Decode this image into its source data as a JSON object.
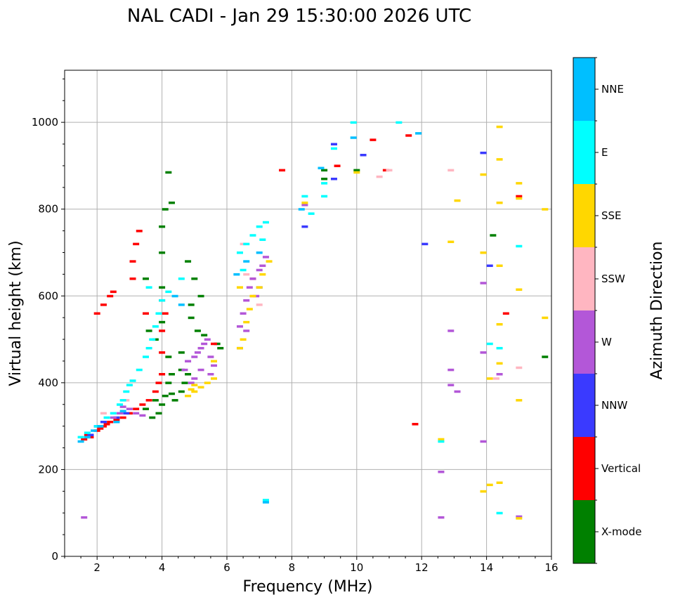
{
  "chart_data": {
    "type": "scatter",
    "title": "NAL CADI - Jan 29 15:30:00 2026 UTC",
    "xlabel": "Frequency (MHz)",
    "ylabel": "Virtual height (km)",
    "xlim": [
      1,
      16
    ],
    "ylim": [
      0,
      1120
    ],
    "xticks": [
      2,
      4,
      6,
      8,
      10,
      12,
      14,
      16
    ],
    "yticks": [
      0,
      200,
      400,
      600,
      800,
      1000
    ],
    "grid": true,
    "colorbar": {
      "label": "Azimuth Direction",
      "categories": [
        "X-mode",
        "Vertical",
        "NNW",
        "W",
        "SSW",
        "SSE",
        "E",
        "NNE"
      ],
      "colors": [
        "#008000",
        "#ff0000",
        "#3a3aff",
        "#b357d8",
        "#ffb6c1",
        "#ffd700",
        "#00ffff",
        "#00bfff"
      ]
    },
    "series": [
      {
        "name": "X-mode",
        "points": [
          [
            4.2,
            885
          ],
          [
            4.3,
            815
          ],
          [
            4.1,
            800
          ],
          [
            4.0,
            760
          ],
          [
            4.0,
            700
          ],
          [
            3.5,
            640
          ],
          [
            4.0,
            620
          ],
          [
            4.0,
            540
          ],
          [
            3.6,
            520
          ],
          [
            3.8,
            500
          ],
          [
            4.2,
            460
          ],
          [
            4.6,
            470
          ],
          [
            4.6,
            430
          ],
          [
            4.8,
            420
          ],
          [
            4.2,
            400
          ],
          [
            4.1,
            370
          ],
          [
            4.0,
            350
          ],
          [
            3.9,
            330
          ],
          [
            3.7,
            320
          ],
          [
            3.5,
            340
          ],
          [
            4.4,
            360
          ],
          [
            4.3,
            375
          ],
          [
            4.6,
            380
          ],
          [
            4.8,
            680
          ],
          [
            5.0,
            640
          ],
          [
            5.2,
            600
          ],
          [
            4.9,
            550
          ],
          [
            5.1,
            520
          ],
          [
            5.3,
            510
          ],
          [
            5.7,
            490
          ],
          [
            5.8,
            480
          ],
          [
            9.0,
            890
          ],
          [
            9.0,
            870
          ],
          [
            10.0,
            890
          ],
          [
            14.2,
            740
          ],
          [
            15.8,
            460
          ],
          [
            4.9,
            580
          ],
          [
            4.3,
            420
          ],
          [
            4.7,
            400
          ],
          [
            3.8,
            360
          ]
        ]
      },
      {
        "name": "Vertical",
        "points": [
          [
            1.6,
            270
          ],
          [
            1.7,
            280
          ],
          [
            1.8,
            275
          ],
          [
            2.0,
            290
          ],
          [
            2.1,
            295
          ],
          [
            2.2,
            300
          ],
          [
            2.3,
            305
          ],
          [
            2.4,
            310
          ],
          [
            2.6,
            315
          ],
          [
            2.8,
            320
          ],
          [
            3.0,
            330
          ],
          [
            3.2,
            340
          ],
          [
            3.4,
            350
          ],
          [
            3.6,
            360
          ],
          [
            3.8,
            380
          ],
          [
            3.9,
            400
          ],
          [
            4.0,
            420
          ],
          [
            4.0,
            470
          ],
          [
            4.0,
            520
          ],
          [
            4.1,
            560
          ],
          [
            3.5,
            560
          ],
          [
            4.0,
            590
          ],
          [
            3.1,
            640
          ],
          [
            3.1,
            680
          ],
          [
            3.2,
            720
          ],
          [
            3.3,
            750
          ],
          [
            2.0,
            560
          ],
          [
            2.2,
            580
          ],
          [
            2.4,
            600
          ],
          [
            2.5,
            610
          ],
          [
            7.7,
            890
          ],
          [
            9.4,
            900
          ],
          [
            10.5,
            960
          ],
          [
            10.9,
            890
          ],
          [
            11.6,
            970
          ],
          [
            11.8,
            305
          ],
          [
            14.6,
            560
          ],
          [
            15.0,
            830
          ],
          [
            6.8,
            640
          ],
          [
            5.6,
            490
          ]
        ]
      },
      {
        "name": "NNW",
        "points": [
          [
            1.8,
            280
          ],
          [
            2.0,
            300
          ],
          [
            2.2,
            310
          ],
          [
            2.6,
            320
          ],
          [
            2.9,
            330
          ],
          [
            8.4,
            760
          ],
          [
            9.3,
            870
          ],
          [
            9.3,
            950
          ],
          [
            10.2,
            925
          ],
          [
            12.1,
            720
          ],
          [
            14.1,
            670
          ],
          [
            13.9,
            930
          ],
          [
            6.4,
            480
          ],
          [
            7.0,
            620
          ]
        ]
      },
      {
        "name": "W",
        "points": [
          [
            2.5,
            320
          ],
          [
            2.7,
            330
          ],
          [
            2.8,
            345
          ],
          [
            3.0,
            340
          ],
          [
            3.2,
            330
          ],
          [
            3.4,
            325
          ],
          [
            4.7,
            430
          ],
          [
            4.8,
            450
          ],
          [
            5.0,
            460
          ],
          [
            5.1,
            470
          ],
          [
            5.2,
            480
          ],
          [
            5.3,
            490
          ],
          [
            5.4,
            500
          ],
          [
            5.5,
            460
          ],
          [
            5.6,
            440
          ],
          [
            5.5,
            420
          ],
          [
            5.0,
            410
          ],
          [
            4.9,
            400
          ],
          [
            5.2,
            430
          ],
          [
            6.5,
            560
          ],
          [
            6.6,
            590
          ],
          [
            6.7,
            620
          ],
          [
            6.8,
            640
          ],
          [
            7.0,
            660
          ],
          [
            7.2,
            690
          ],
          [
            6.4,
            530
          ],
          [
            6.6,
            520
          ],
          [
            6.9,
            600
          ],
          [
            7.1,
            670
          ],
          [
            8.4,
            810
          ],
          [
            12.9,
            520
          ],
          [
            12.9,
            430
          ],
          [
            12.9,
            395
          ],
          [
            13.1,
            380
          ],
          [
            13.9,
            630
          ],
          [
            13.9,
            470
          ],
          [
            13.9,
            265
          ],
          [
            12.6,
            195
          ],
          [
            12.6,
            90
          ],
          [
            15.0,
            92
          ],
          [
            14.4,
            420
          ],
          [
            1.6,
            90
          ]
        ]
      },
      {
        "name": "SSW",
        "points": [
          [
            6.5,
            720
          ],
          [
            6.6,
            650
          ],
          [
            6.8,
            600
          ],
          [
            7.0,
            580
          ],
          [
            2.2,
            330
          ],
          [
            2.9,
            360
          ],
          [
            10.7,
            875
          ],
          [
            11.0,
            890
          ],
          [
            12.9,
            890
          ],
          [
            15.0,
            435
          ],
          [
            14.3,
            410
          ]
        ]
      },
      {
        "name": "SSE",
        "points": [
          [
            4.8,
            370
          ],
          [
            5.0,
            380
          ],
          [
            5.2,
            390
          ],
          [
            5.4,
            400
          ],
          [
            5.6,
            410
          ],
          [
            5.0,
            395
          ],
          [
            4.9,
            385
          ],
          [
            6.4,
            480
          ],
          [
            6.5,
            500
          ],
          [
            6.6,
            540
          ],
          [
            6.7,
            570
          ],
          [
            6.8,
            600
          ],
          [
            7.0,
            620
          ],
          [
            7.1,
            650
          ],
          [
            7.3,
            680
          ],
          [
            6.4,
            620
          ],
          [
            8.4,
            815
          ],
          [
            10.0,
            885
          ],
          [
            12.9,
            725
          ],
          [
            13.1,
            820
          ],
          [
            13.9,
            880
          ],
          [
            13.9,
            700
          ],
          [
            13.9,
            150
          ],
          [
            14.1,
            410
          ],
          [
            14.1,
            165
          ],
          [
            14.4,
            990
          ],
          [
            14.4,
            915
          ],
          [
            14.4,
            815
          ],
          [
            14.4,
            670
          ],
          [
            14.4,
            535
          ],
          [
            14.4,
            445
          ],
          [
            14.4,
            170
          ],
          [
            15.0,
            860
          ],
          [
            15.0,
            825
          ],
          [
            15.0,
            615
          ],
          [
            15.0,
            360
          ],
          [
            15.0,
            88
          ],
          [
            15.8,
            800
          ],
          [
            15.8,
            550
          ],
          [
            5.6,
            450
          ],
          [
            12.6,
            270
          ]
        ]
      },
      {
        "name": "E",
        "points": [
          [
            1.5,
            275
          ],
          [
            1.7,
            285
          ],
          [
            2.0,
            300
          ],
          [
            2.3,
            320
          ],
          [
            2.5,
            330
          ],
          [
            2.7,
            350
          ],
          [
            2.8,
            360
          ],
          [
            2.9,
            380
          ],
          [
            3.0,
            395
          ],
          [
            3.1,
            405
          ],
          [
            3.3,
            430
          ],
          [
            3.5,
            460
          ],
          [
            3.6,
            480
          ],
          [
            3.7,
            500
          ],
          [
            3.8,
            530
          ],
          [
            3.9,
            560
          ],
          [
            4.0,
            590
          ],
          [
            4.2,
            610
          ],
          [
            4.6,
            640
          ],
          [
            3.6,
            620
          ],
          [
            6.4,
            700
          ],
          [
            6.6,
            720
          ],
          [
            6.8,
            740
          ],
          [
            7.0,
            760
          ],
          [
            7.2,
            770
          ],
          [
            6.5,
            660
          ],
          [
            7.1,
            730
          ],
          [
            8.4,
            830
          ],
          [
            8.6,
            790
          ],
          [
            9.0,
            860
          ],
          [
            9.0,
            830
          ],
          [
            9.3,
            940
          ],
          [
            9.9,
            1000
          ],
          [
            11.3,
            1000
          ],
          [
            14.1,
            490
          ],
          [
            14.4,
            480
          ],
          [
            14.4,
            100
          ],
          [
            15.0,
            715
          ],
          [
            12.6,
            265
          ],
          [
            7.2,
            130
          ]
        ]
      },
      {
        "name": "NNE",
        "points": [
          [
            1.5,
            265
          ],
          [
            1.7,
            275
          ],
          [
            1.9,
            290
          ],
          [
            2.1,
            300
          ],
          [
            2.6,
            310
          ],
          [
            2.8,
            335
          ],
          [
            4.4,
            600
          ],
          [
            4.6,
            580
          ],
          [
            6.3,
            650
          ],
          [
            6.6,
            680
          ],
          [
            7.0,
            700
          ],
          [
            8.9,
            895
          ],
          [
            9.9,
            965
          ],
          [
            11.9,
            975
          ],
          [
            7.2,
            125
          ],
          [
            8.3,
            800
          ]
        ]
      }
    ]
  }
}
